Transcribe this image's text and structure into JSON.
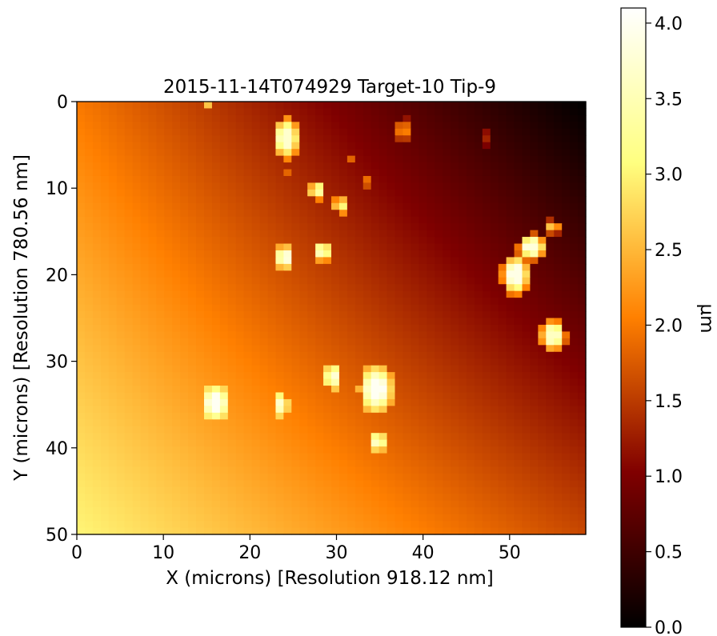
{
  "chart_data": {
    "type": "heatmap",
    "title": "2015-11-14T074929 Target-10 Tip-9",
    "xlabel": "X (microns) [Resolution 918.12 nm]",
    "ylabel": "Y (microns) [Resolution 780.56 nm]",
    "xlim": [
      0,
      58.8
    ],
    "ylim": [
      50,
      0
    ],
    "xticks": [
      0,
      10,
      20,
      30,
      40,
      50
    ],
    "yticks": [
      0,
      10,
      20,
      30,
      40,
      50
    ],
    "colorbar": {
      "label": "µm",
      "range": [
        0.0,
        4.1
      ],
      "ticks": [
        "0.0",
        "0.5",
        "1.0",
        "1.5",
        "2.0",
        "2.5",
        "3.0",
        "3.5",
        "4.0"
      ],
      "colormap": "afmhot"
    },
    "background_surface": {
      "description_values": "height plane in µm",
      "top_left": 2.0,
      "bottom_left": 3.0,
      "top_right": 0.0,
      "bottom_right": 1.6
    },
    "features": [
      {
        "x": 15.3,
        "y": 0.3,
        "rx": 0.5,
        "ry": 0.4,
        "peak": 2.6
      },
      {
        "x": 24.2,
        "y": 4.2,
        "rx": 1.3,
        "ry": 2.0,
        "peak": 3.7
      },
      {
        "x": 37.7,
        "y": 3.3,
        "rx": 0.8,
        "ry": 1.2,
        "peak": 2.1
      },
      {
        "x": 47.2,
        "y": 4.2,
        "rx": 0.5,
        "ry": 1.0,
        "peak": 1.3
      },
      {
        "x": 31.5,
        "y": 6.5,
        "rx": 0.4,
        "ry": 0.4,
        "peak": 1.9
      },
      {
        "x": 24.0,
        "y": 8.2,
        "rx": 0.4,
        "ry": 0.4,
        "peak": 2.1
      },
      {
        "x": 33.5,
        "y": 9.2,
        "rx": 0.5,
        "ry": 0.7,
        "peak": 1.9
      },
      {
        "x": 27.8,
        "y": 10.3,
        "rx": 0.9,
        "ry": 0.9,
        "peak": 3.3
      },
      {
        "x": 30.4,
        "y": 12.0,
        "rx": 0.6,
        "ry": 1.0,
        "peak": 3.3
      },
      {
        "x": 24.0,
        "y": 18.0,
        "rx": 0.9,
        "ry": 1.2,
        "peak": 3.8
      },
      {
        "x": 28.4,
        "y": 17.3,
        "rx": 0.8,
        "ry": 1.0,
        "peak": 3.6
      },
      {
        "x": 55.0,
        "y": 14.5,
        "rx": 0.8,
        "ry": 0.8,
        "peak": 2.6
      },
      {
        "x": 52.6,
        "y": 16.8,
        "rx": 1.4,
        "ry": 1.3,
        "peak": 3.8
      },
      {
        "x": 50.7,
        "y": 20.0,
        "rx": 1.4,
        "ry": 2.0,
        "peak": 3.9
      },
      {
        "x": 55.0,
        "y": 27.0,
        "rx": 1.3,
        "ry": 1.6,
        "peak": 3.6
      },
      {
        "x": 16.0,
        "y": 34.8,
        "rx": 1.3,
        "ry": 1.6,
        "peak": 4.0
      },
      {
        "x": 23.7,
        "y": 35.0,
        "rx": 0.6,
        "ry": 1.3,
        "peak": 3.7
      },
      {
        "x": 29.5,
        "y": 31.8,
        "rx": 0.7,
        "ry": 1.4,
        "peak": 3.8
      },
      {
        "x": 34.6,
        "y": 33.2,
        "rx": 1.6,
        "ry": 2.3,
        "peak": 4.0
      },
      {
        "x": 34.8,
        "y": 39.3,
        "rx": 0.8,
        "ry": 1.0,
        "peak": 3.6
      }
    ]
  }
}
